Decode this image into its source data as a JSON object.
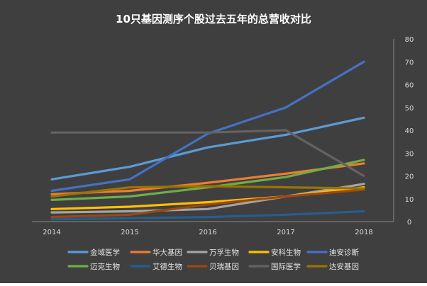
{
  "chart_data": {
    "type": "line",
    "title": "10只基因测序个股过去五年的总营收对比",
    "x": [
      "2014",
      "2015",
      "2016",
      "2017",
      "2018"
    ],
    "ylim": [
      0,
      80
    ],
    "yticks": [
      0,
      10,
      20,
      30,
      40,
      50,
      60,
      70,
      80
    ],
    "grid": false,
    "legend_position": "bottom",
    "background": "#3f3f3f",
    "series": [
      {
        "name": "金域医学",
        "color": "#5b9bd5",
        "values": [
          18.5,
          24,
          32.5,
          38,
          45.5
        ]
      },
      {
        "name": "华大基因",
        "color": "#ed7d31",
        "values": [
          12,
          13.5,
          17,
          21,
          25.5
        ]
      },
      {
        "name": "万孚生物",
        "color": "#a5a5a5",
        "values": [
          4,
          4.5,
          5.5,
          11,
          16.5
        ]
      },
      {
        "name": "安科生物",
        "color": "#ffc000",
        "values": [
          5.5,
          6.5,
          8.5,
          11,
          15
        ]
      },
      {
        "name": "迪安诊断",
        "color": "#4472c4",
        "values": [
          13.5,
          18.5,
          38.5,
          50,
          70
        ]
      },
      {
        "name": "迈克生物",
        "color": "#70ad47",
        "values": [
          9.5,
          11,
          15,
          19.5,
          27
        ]
      },
      {
        "name": "艾德生物",
        "color": "#255e91",
        "values": [
          1,
          1.5,
          2,
          3,
          4.5
        ]
      },
      {
        "name": "贝瑞基因",
        "color": "#9e480e",
        "values": [
          2,
          3,
          7.5,
          11,
          14
        ]
      },
      {
        "name": "国际医学",
        "color": "#636363",
        "values": [
          39,
          39,
          39,
          40,
          20
        ]
      },
      {
        "name": "达安基因",
        "color": "#997300",
        "values": [
          11,
          15,
          15.5,
          15,
          14.5
        ]
      }
    ]
  }
}
